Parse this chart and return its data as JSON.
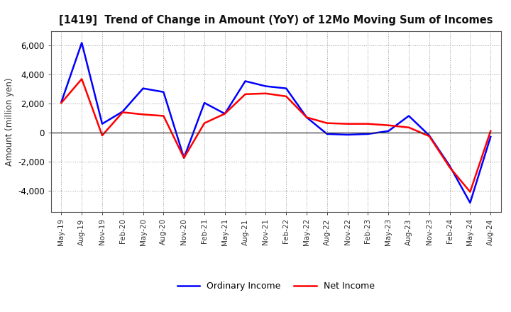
{
  "title": "[1419]  Trend of Change in Amount (YoY) of 12Mo Moving Sum of Incomes",
  "ylabel": "Amount (million yen)",
  "x_labels": [
    "May-19",
    "Aug-19",
    "Nov-19",
    "Feb-20",
    "May-20",
    "Aug-20",
    "Nov-20",
    "Feb-21",
    "May-21",
    "Aug-21",
    "Nov-21",
    "Feb-22",
    "May-22",
    "Aug-22",
    "Nov-22",
    "Feb-23",
    "May-23",
    "Aug-23",
    "Nov-23",
    "Feb-24",
    "May-24",
    "Aug-24"
  ],
  "ordinary_income": [
    2100,
    6200,
    600,
    1450,
    3050,
    2800,
    -1750,
    2050,
    1300,
    3550,
    3200,
    3050,
    1050,
    -100,
    -150,
    -100,
    100,
    1150,
    -200,
    -2300,
    -4850,
    -300
  ],
  "net_income": [
    2050,
    3700,
    -200,
    1400,
    1250,
    1150,
    -1750,
    650,
    1300,
    2650,
    2700,
    2500,
    1050,
    650,
    600,
    600,
    500,
    350,
    -250,
    -2400,
    -4100,
    100
  ],
  "ordinary_color": "#0000FF",
  "net_color": "#FF0000",
  "ylim": [
    -5500,
    7000
  ],
  "yticks": [
    -4000,
    -2000,
    0,
    2000,
    4000,
    6000
  ],
  "background_color": "#FFFFFF",
  "plot_bg_color": "#FFFFFF",
  "grid_color": "#999999",
  "legend_labels": [
    "Ordinary Income",
    "Net Income"
  ],
  "line_width": 1.8
}
